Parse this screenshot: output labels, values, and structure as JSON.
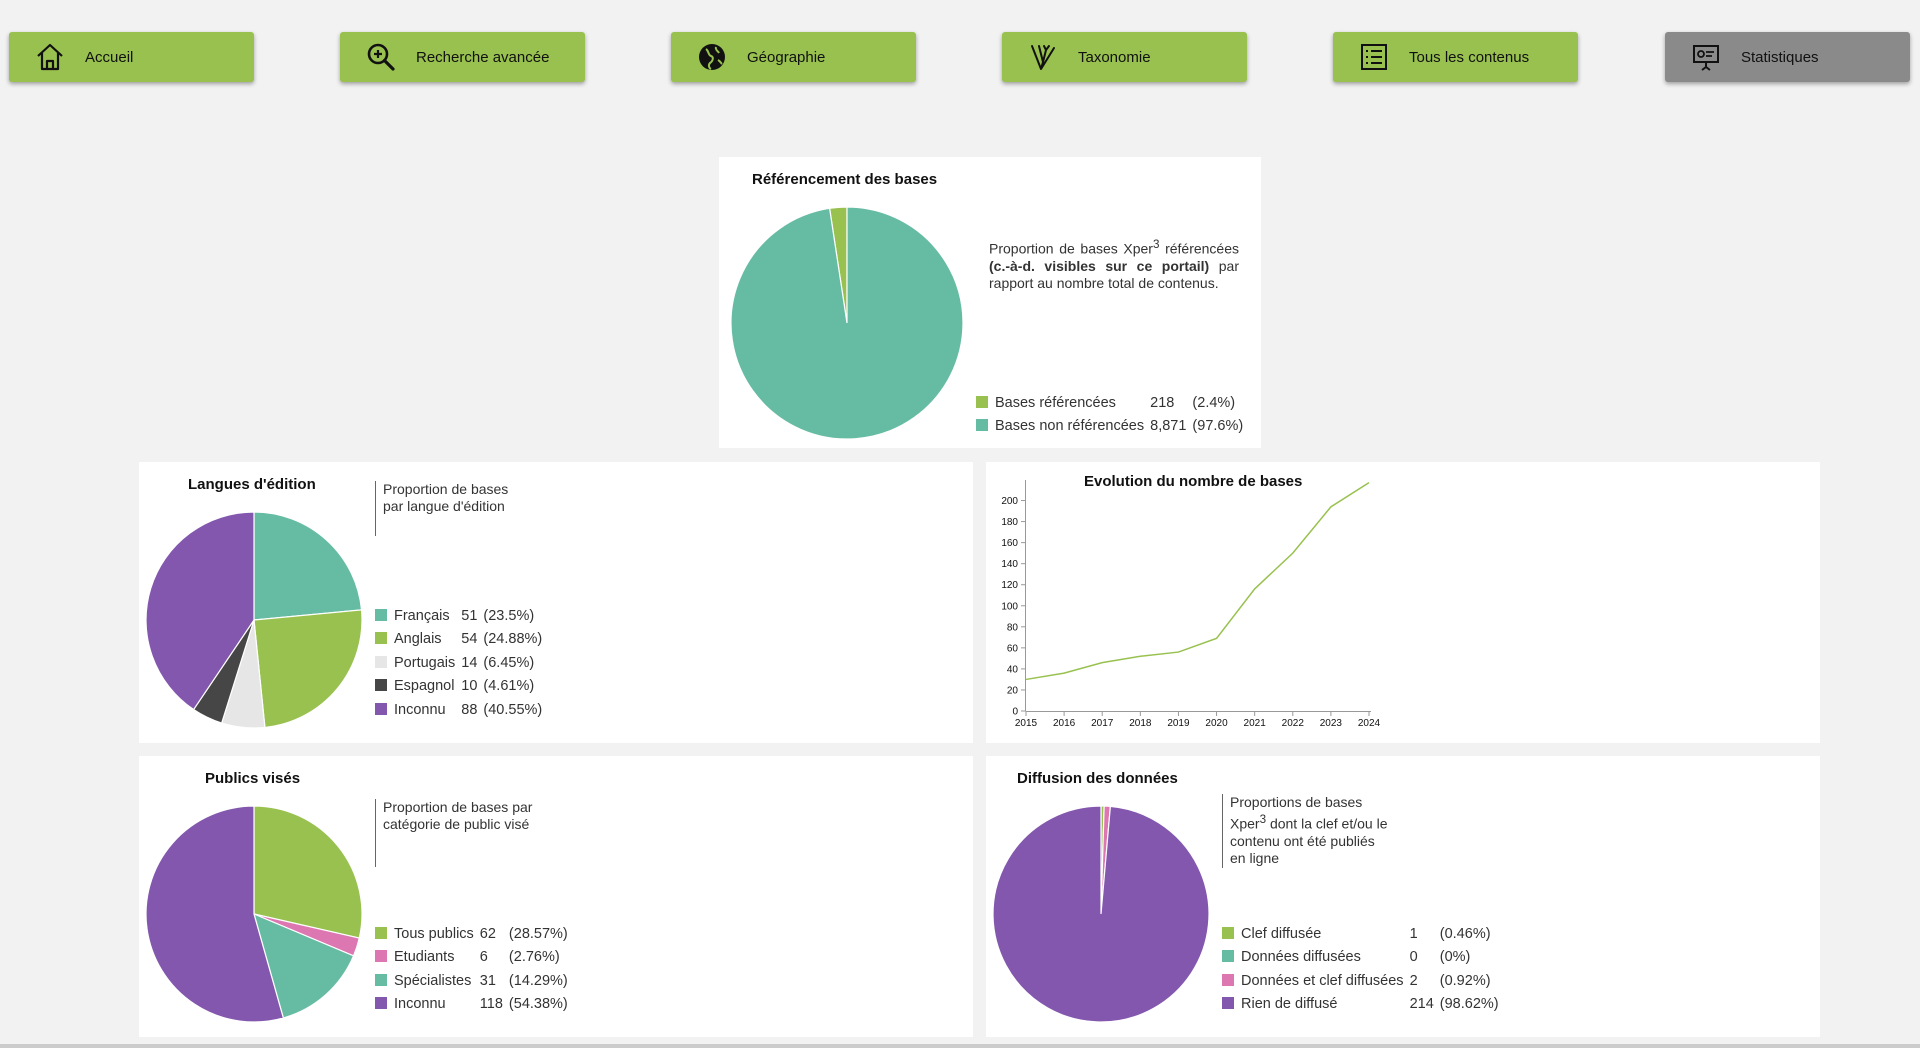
{
  "nav": [
    {
      "label": "Accueil",
      "icon": "home-icon",
      "active": false
    },
    {
      "label": "Recherche avancée",
      "icon": "zoom-search-icon",
      "active": false
    },
    {
      "label": "Géographie",
      "icon": "globe-icon",
      "active": false
    },
    {
      "label": "Taxonomie",
      "icon": "taxonomy-tree-icon",
      "active": false
    },
    {
      "label": "Tous les contenus",
      "icon": "list-icon",
      "active": false
    },
    {
      "label": "Statistiques",
      "icon": "presentation-icon",
      "active": true
    }
  ],
  "colors": {
    "green": "#98c14f",
    "teal": "#66bba3",
    "purple": "#8257ad",
    "pink": "#dd77b1",
    "light_gray": "#e6e6e6",
    "dark_gray": "#464646",
    "nav_active": "#8a8a8a"
  },
  "referencement": {
    "title": "Référencement des bases",
    "desc_part1": "Proportion de bases Xper",
    "desc_sup": "3",
    "desc_part2": " référencées ",
    "desc_bold": "(c.-à-d. visibles sur ce portail)",
    "desc_part3": " par rapport au nombre total de contenus."
  },
  "langues": {
    "title": "Langues d'édition",
    "desc": "Proportion de bases par langue d'édition"
  },
  "evolution": {
    "title": "Evolution du nombre de bases"
  },
  "publics": {
    "title": "Publics visés",
    "desc": "Proportion de bases par catégorie de public visé"
  },
  "diffusion": {
    "title": "Diffusion des données",
    "desc_part1": "Proportions de bases Xper",
    "desc_sup": "3",
    "desc_part2": " dont la clef et/ou le contenu ont été publiés en ligne"
  },
  "chart_data": [
    {
      "id": "referencement",
      "type": "pie",
      "title": "Référencement des bases",
      "slices": [
        {
          "label": "Bases référencées",
          "value": 218,
          "pct": "(2.4%)",
          "value_text": "218",
          "color": "#98c14f"
        },
        {
          "label": "Bases non référencées",
          "value": 8871,
          "pct": "(97.6%)",
          "value_text": "8,871",
          "color": "#66bba3"
        }
      ]
    },
    {
      "id": "langues",
      "type": "pie",
      "title": "Langues d'édition",
      "slices": [
        {
          "label": "Français",
          "value": 51,
          "pct": "(23.5%)",
          "value_text": "51",
          "color": "#66bba3"
        },
        {
          "label": "Anglais",
          "value": 54,
          "pct": "(24.88%)",
          "value_text": "54",
          "color": "#98c14f"
        },
        {
          "label": "Portugais",
          "value": 14,
          "pct": "(6.45%)",
          "value_text": "14",
          "color": "#e6e6e6"
        },
        {
          "label": "Espagnol",
          "value": 10,
          "pct": "(4.61%)",
          "value_text": "10",
          "color": "#464646"
        },
        {
          "label": "Inconnu",
          "value": 88,
          "pct": "(40.55%)",
          "value_text": "88",
          "color": "#8257ad"
        }
      ]
    },
    {
      "id": "evolution",
      "type": "line",
      "title": "Evolution du nombre de bases",
      "x": [
        2015,
        2016,
        2017,
        2018,
        2019,
        2020,
        2021,
        2022,
        2023,
        2024
      ],
      "series": [
        {
          "values": [
            30,
            36,
            46,
            52,
            56,
            69,
            116,
            150,
            194,
            217
          ],
          "color": "#98c14f"
        }
      ],
      "xticks": [
        "2015",
        "2016",
        "2017",
        "2018",
        "2019",
        "2020",
        "2021",
        "2022",
        "2023",
        "2024"
      ],
      "yticks": [
        "0",
        "20",
        "40",
        "60",
        "80",
        "100",
        "120",
        "140",
        "160",
        "180",
        "200"
      ],
      "ylim": [
        0,
        210
      ]
    },
    {
      "id": "publics",
      "type": "pie",
      "title": "Publics visés",
      "slices": [
        {
          "label": "Tous publics",
          "value": 62,
          "pct": "(28.57%)",
          "value_text": "62",
          "color": "#98c14f"
        },
        {
          "label": "Etudiants",
          "value": 6,
          "pct": "(2.76%)",
          "value_text": "6",
          "color": "#dd77b1"
        },
        {
          "label": "Spécialistes",
          "value": 31,
          "pct": "(14.29%)",
          "value_text": "31",
          "color": "#66bba3"
        },
        {
          "label": "Inconnu",
          "value": 118,
          "pct": "(54.38%)",
          "value_text": "118",
          "color": "#8257ad"
        }
      ]
    },
    {
      "id": "diffusion",
      "type": "pie",
      "title": "Diffusion des données",
      "slices": [
        {
          "label": "Clef diffusée",
          "value": 1,
          "pct": "(0.46%)",
          "value_text": "1",
          "color": "#98c14f"
        },
        {
          "label": "Données diffusées",
          "value": 0,
          "pct": "(0%)",
          "value_text": "0",
          "color": "#66bba3"
        },
        {
          "label": "Données et clef diffusées",
          "value": 2,
          "pct": "(0.92%)",
          "value_text": "2",
          "color": "#dd77b1"
        },
        {
          "label": "Rien de diffusé",
          "value": 214,
          "pct": "(98.62%)",
          "value_text": "214",
          "color": "#8257ad"
        }
      ]
    }
  ]
}
